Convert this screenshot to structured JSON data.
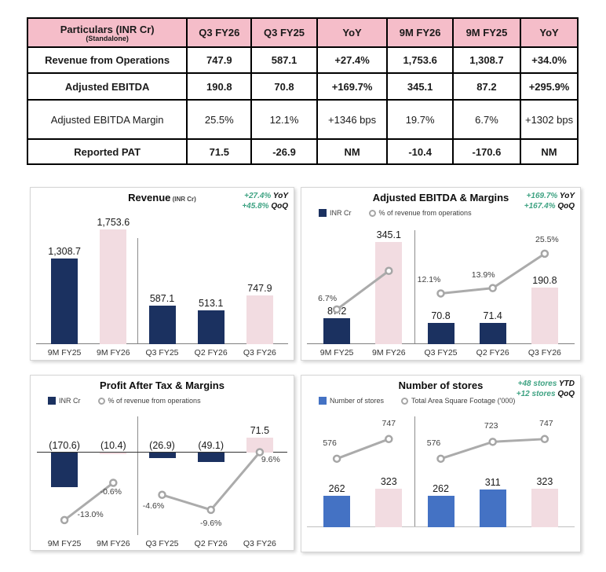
{
  "colors": {
    "navy": "#1B3160",
    "pink": "#F2DCE1",
    "blue": "#4472C4",
    "green": "#3FA383",
    "line_gray": "#ABABAB",
    "header_pink": "#F5BDC9"
  },
  "table": {
    "header": {
      "col0_line1": "Particulars (INR Cr)",
      "col0_line2": "(Standalone)",
      "cols": [
        "Q3 FY26",
        "Q3 FY25",
        "YoY",
        "9M FY26",
        "9M FY25",
        "YoY"
      ]
    },
    "rows": [
      {
        "label": "Revenue from Operations",
        "bold": true,
        "values": [
          "747.9",
          "587.1",
          "+27.4%",
          "1,753.6",
          "1,308.7",
          "+34.0%"
        ]
      },
      {
        "label": "Adjusted EBITDA",
        "bold": true,
        "values": [
          "190.8",
          "70.8",
          "+169.7%",
          "345.1",
          "87.2",
          "+295.9%"
        ]
      },
      {
        "label": "Adjusted EBITDA Margin",
        "bold": false,
        "values": [
          "25.5%",
          "12.1%",
          "+1346 bps",
          "19.7%",
          "6.7%",
          "+1302 bps"
        ]
      },
      {
        "label": "Reported PAT",
        "bold": true,
        "values": [
          "71.5",
          "-26.9",
          "NM",
          "-10.4",
          "-170.6",
          "NM"
        ]
      }
    ]
  },
  "chart_data": [
    {
      "id": "revenue",
      "type": "bar",
      "title": "Revenue",
      "title_suffix": "(INR Cr)",
      "annotations": [
        {
          "value": "+27.4%",
          "suffix": "YoY"
        },
        {
          "value": "+45.8%",
          "suffix": "QoQ"
        }
      ],
      "legend": [],
      "categories": [
        "9M FY25",
        "9M FY26",
        "Q3 FY25",
        "Q2 FY26",
        "Q3 FY26"
      ],
      "values": [
        1308.7,
        1753.6,
        587.1,
        513.1,
        747.9
      ],
      "bar_labels": [
        "1,308.7",
        "1,753.6",
        "587.1",
        "513.1",
        "747.9"
      ],
      "bar_colors": [
        "navy",
        "pink",
        "navy",
        "navy",
        "pink"
      ],
      "ylim": [
        0,
        1810
      ],
      "divider_after": 1,
      "line": null
    },
    {
      "id": "ebitda",
      "type": "bar+line",
      "title": "Adjusted EBITDA & Margins",
      "title_suffix": "",
      "annotations": [
        {
          "value": "+169.7%",
          "suffix": "YoY"
        },
        {
          "value": "+167.4%",
          "suffix": "QoQ"
        }
      ],
      "legend": [
        {
          "marker": "square",
          "color": "navy",
          "label": "INR Cr"
        },
        {
          "marker": "circle",
          "color": "",
          "label": "% of revenue from operations"
        }
      ],
      "categories": [
        "9M FY25",
        "9M FY26",
        "Q3 FY25",
        "Q2 FY26",
        "Q3 FY26"
      ],
      "values": [
        87.2,
        345.1,
        70.8,
        71.4,
        190.8
      ],
      "bar_labels": [
        "87.2",
        "345.1",
        "70.8",
        "71.4",
        "190.8"
      ],
      "bar_colors": [
        "navy",
        "pink",
        "navy",
        "navy",
        "pink"
      ],
      "ylim": [
        0,
        400
      ],
      "divider_after": 1,
      "line": {
        "name": "% of revenue from operations",
        "values": [
          6.7,
          19.7,
          12.1,
          13.9,
          25.5
        ],
        "labels": [
          "6.7%",
          "",
          "12.1%",
          "13.9%",
          "25.5%"
        ],
        "ylim": [
          -5,
          35
        ]
      }
    },
    {
      "id": "pat",
      "type": "bar+line",
      "title": "Profit After Tax & Margins",
      "title_suffix": "",
      "annotations": [],
      "legend": [
        {
          "marker": "square",
          "color": "navy",
          "label": "INR Cr"
        },
        {
          "marker": "circle",
          "color": "",
          "label": "% of revenue from operations"
        }
      ],
      "categories": [
        "9M FY25",
        "9M FY26",
        "Q3 FY25",
        "Q2 FY26",
        "Q3 FY26"
      ],
      "values": [
        -170.6,
        -10.4,
        -26.9,
        -49.1,
        71.5
      ],
      "bar_labels": [
        "(170.6)",
        "(10.4)",
        "(26.9)",
        "(49.1)",
        "71.5"
      ],
      "bar_colors": [
        "navy",
        "pink",
        "navy",
        "navy",
        "pink"
      ],
      "ylim": [
        -405,
        175
      ],
      "divider_after": 1,
      "line": {
        "name": "% of revenue from operations",
        "values": [
          -13.0,
          -0.6,
          -4.6,
          -9.6,
          9.6
        ],
        "labels": [
          "-13.0%",
          "-0.6%",
          "-4.6%",
          "-9.6%",
          "9.6%"
        ],
        "ylim": [
          -18,
          21.5
        ]
      }
    },
    {
      "id": "stores",
      "type": "bar+line",
      "title": "Number of stores",
      "title_suffix": "",
      "annotations": [
        {
          "value": "+48 stores",
          "suffix": "YTD"
        },
        {
          "value": "+12 stores",
          "suffix": "QoQ"
        }
      ],
      "legend": [
        {
          "marker": "square",
          "color": "blue",
          "label": "Number of stores"
        },
        {
          "marker": "circle",
          "color": "",
          "label": "Total Area Square Footage ('000)"
        }
      ],
      "categories": [
        "9M FY25",
        "9M FY26",
        "Q3 FY25",
        "Q2 FY26",
        "Q3 FY26"
      ],
      "values": [
        262,
        323,
        262,
        311,
        323
      ],
      "bar_labels": [
        "262",
        "323",
        "262",
        "311",
        "323"
      ],
      "bar_colors": [
        "blue",
        "pink",
        "blue",
        "blue",
        "pink"
      ],
      "ylim": [
        0,
        960
      ],
      "divider_after": 1,
      "line": {
        "name": "Total Area Square Footage ('000)",
        "values": [
          576,
          747,
          576,
          723,
          747
        ],
        "labels": [
          "576",
          "747",
          "576",
          "723",
          "747"
        ],
        "ylim": [
          -20,
          985
        ]
      }
    }
  ]
}
